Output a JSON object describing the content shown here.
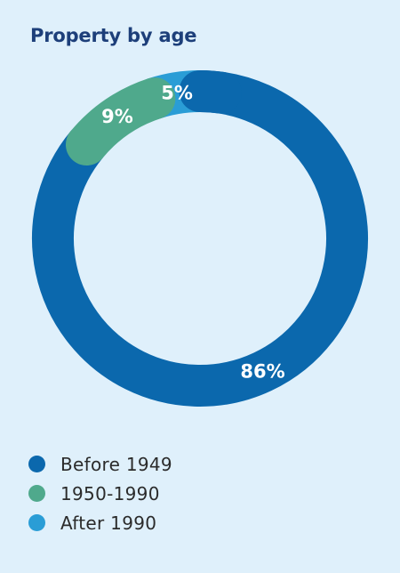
{
  "chart_data": {
    "type": "pie",
    "title": "Property by age",
    "categories": [
      "Before 1949",
      "1950-1990",
      "After 1990"
    ],
    "values": [
      86,
      9,
      5
    ],
    "labels": [
      "86%",
      "9%",
      "5%"
    ],
    "colors": [
      "#0b68ad",
      "#4fa98c",
      "#2a9dd6"
    ],
    "legend_position": "bottom"
  }
}
